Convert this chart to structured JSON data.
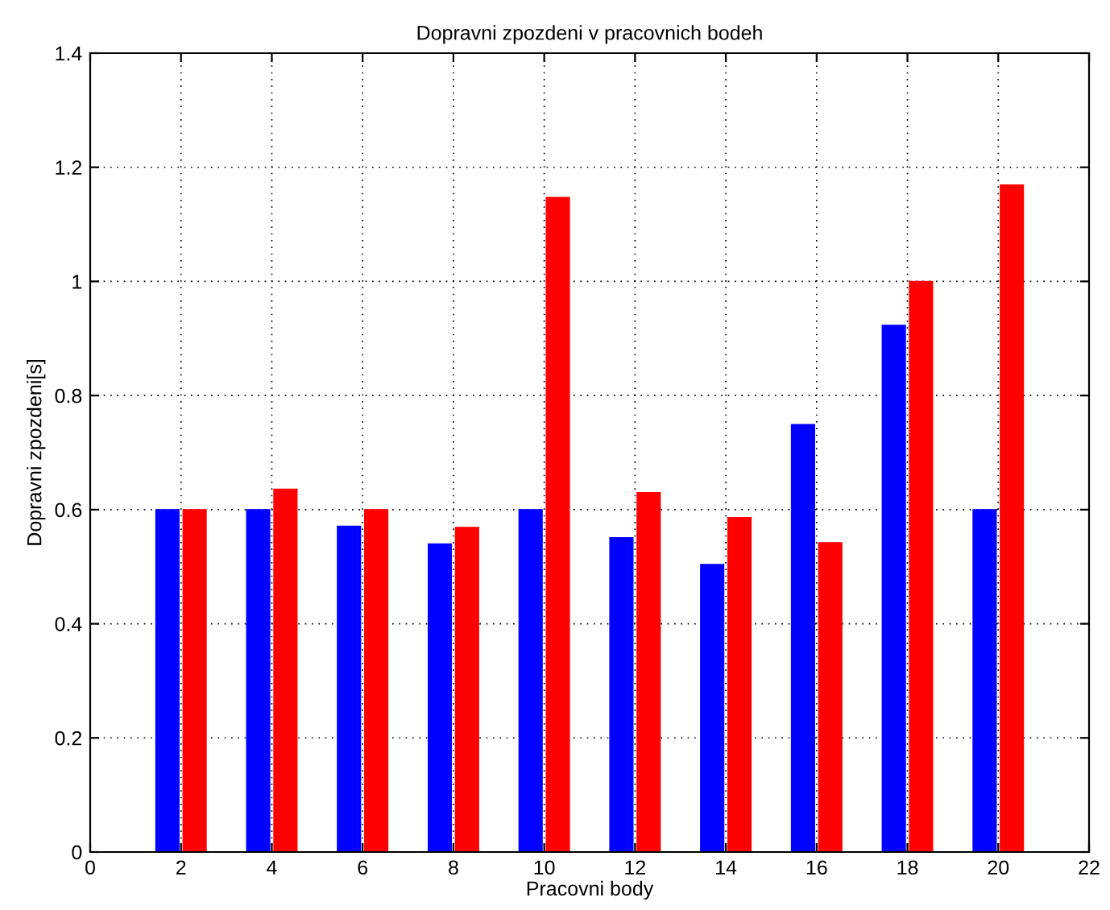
{
  "chart_data": {
    "type": "bar",
    "title": "Dopravni zpozdeni v pracovnich bodeh",
    "xlabel": "Pracovni body",
    "ylabel": "Dopravni zpozdeni[s]",
    "x": [
      2,
      4,
      6,
      8,
      10,
      12,
      14,
      16,
      18,
      20
    ],
    "series": [
      {
        "color": "#0000ff",
        "values": [
          0.6,
          0.6,
          0.571,
          0.54,
          0.6,
          0.551,
          0.504,
          0.749,
          0.923,
          0.6
        ]
      },
      {
        "color": "#ff0000",
        "values": [
          0.6,
          0.636,
          0.6,
          0.569,
          1.147,
          0.63,
          0.586,
          0.542,
          1.0,
          1.169
        ]
      }
    ],
    "xlim": [
      0,
      22
    ],
    "xticks": [
      0,
      2,
      4,
      6,
      8,
      10,
      12,
      14,
      16,
      18,
      20,
      22
    ],
    "ylim": [
      0,
      1.4
    ],
    "yticks": [
      0,
      0.2,
      0.4,
      0.6,
      0.8,
      1,
      1.2,
      1.4
    ],
    "grid": true,
    "legend": false
  }
}
